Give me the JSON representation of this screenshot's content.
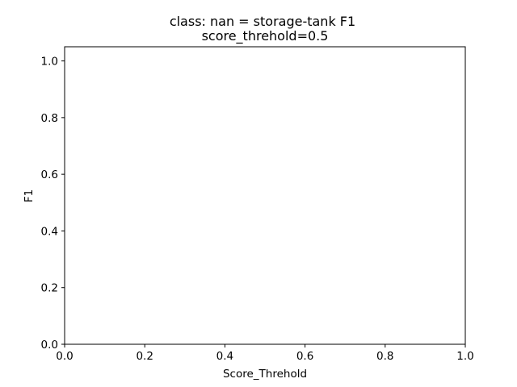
{
  "chart_data": {
    "type": "line",
    "title": "class: nan = storage-tank F1",
    "subtitle": "score_threhold=0.5",
    "xlabel": "Score_Threhold",
    "ylabel": "F1",
    "xlim": [
      0.0,
      1.0
    ],
    "ylim": [
      0.0,
      1.05
    ],
    "x_ticks": [
      0.0,
      0.2,
      0.4,
      0.6,
      0.8,
      1.0
    ],
    "x_tick_labels": [
      "0.0",
      "0.2",
      "0.4",
      "0.6",
      "0.8",
      "1.0"
    ],
    "y_ticks": [
      0.0,
      0.2,
      0.4,
      0.6,
      0.8,
      1.0
    ],
    "y_tick_labels": [
      "0.0",
      "0.2",
      "0.4",
      "0.6",
      "0.8",
      "1.0"
    ],
    "series": [],
    "grid": false,
    "legend": "none"
  }
}
